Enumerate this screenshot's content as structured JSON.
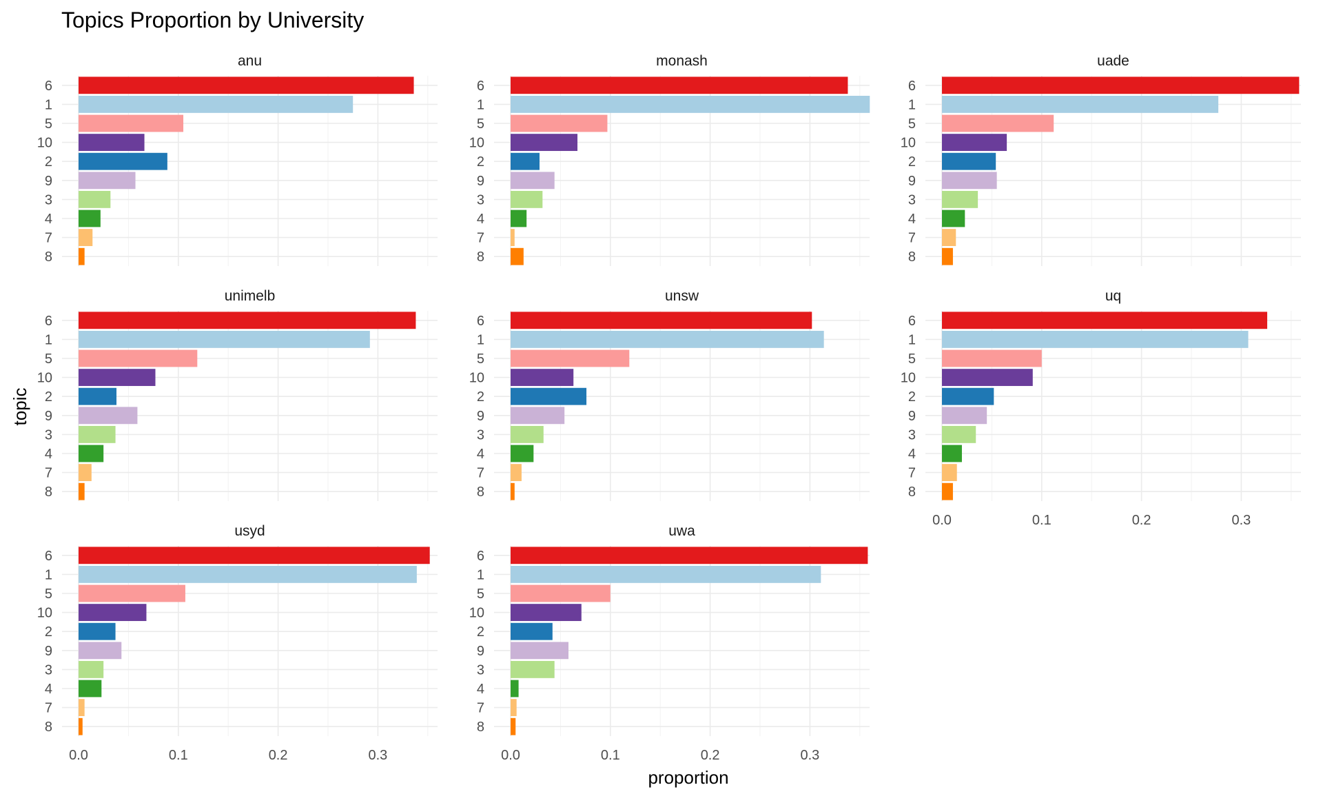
{
  "chart_data": {
    "type": "bar",
    "orientation": "horizontal",
    "title": "Topics Proportion by University",
    "xlabel": "proportion",
    "ylabel": "topic",
    "xlim": [
      0,
      0.36
    ],
    "x_ticks": [
      "0.0",
      "0.1",
      "0.2",
      "0.3"
    ],
    "x_tick_values": [
      0,
      0.1,
      0.2,
      0.3
    ],
    "grid": true,
    "categories": [
      "6",
      "1",
      "5",
      "10",
      "2",
      "9",
      "3",
      "4",
      "7",
      "8"
    ],
    "category_colors": {
      "6": "#e31a1c",
      "1": "#a6cee3",
      "5": "#fb9a99",
      "10": "#6a3d9a",
      "2": "#1f78b4",
      "9": "#cab2d6",
      "3": "#b2df8a",
      "4": "#33a02c",
      "7": "#fdbf6f",
      "8": "#ff7f00"
    },
    "facets": [
      {
        "name": "anu",
        "values": [
          0.336,
          0.275,
          0.105,
          0.066,
          0.089,
          0.057,
          0.032,
          0.022,
          0.014,
          0.006
        ]
      },
      {
        "name": "monash",
        "values": [
          0.338,
          0.36,
          0.097,
          0.067,
          0.029,
          0.044,
          0.032,
          0.016,
          0.004,
          0.013
        ]
      },
      {
        "name": "uade",
        "values": [
          0.358,
          0.277,
          0.112,
          0.065,
          0.054,
          0.055,
          0.036,
          0.023,
          0.014,
          0.011
        ]
      },
      {
        "name": "unimelb",
        "values": [
          0.338,
          0.292,
          0.119,
          0.077,
          0.038,
          0.059,
          0.037,
          0.025,
          0.013,
          0.006
        ]
      },
      {
        "name": "unsw",
        "values": [
          0.302,
          0.314,
          0.119,
          0.063,
          0.076,
          0.054,
          0.033,
          0.023,
          0.011,
          0.004
        ]
      },
      {
        "name": "uq",
        "values": [
          0.326,
          0.307,
          0.1,
          0.091,
          0.052,
          0.045,
          0.034,
          0.02,
          0.015,
          0.011
        ]
      },
      {
        "name": "usyd",
        "values": [
          0.352,
          0.339,
          0.107,
          0.068,
          0.037,
          0.043,
          0.025,
          0.023,
          0.006,
          0.004
        ]
      },
      {
        "name": "uwa",
        "values": [
          0.358,
          0.311,
          0.1,
          0.071,
          0.042,
          0.058,
          0.044,
          0.008,
          0.006,
          0.005
        ]
      }
    ]
  }
}
